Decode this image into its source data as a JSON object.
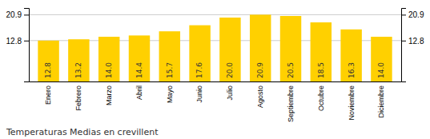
{
  "chart_data": {
    "type": "bar",
    "title": "Temperaturas Medias en crevillent",
    "categories": [
      "Enero",
      "Febrero",
      "Marzo",
      "Abril",
      "Mayo",
      "Junio",
      "Julio",
      "Agosto",
      "Septiembre",
      "Octubre",
      "Noviembre",
      "Diciembre"
    ],
    "values": [
      12.8,
      13.2,
      14.0,
      14.4,
      15.7,
      17.6,
      20.0,
      20.9,
      20.5,
      18.5,
      16.3,
      14.0
    ],
    "value_labels": [
      "12.8",
      "13.2",
      "14.0",
      "14.4",
      "15.7",
      "17.6",
      "20.0",
      "20.9",
      "20.5",
      "18.5",
      "16.3",
      "14.0"
    ],
    "color": "#FFD000",
    "ylim": [
      0,
      23.0
    ],
    "yticks": [
      12.8,
      20.9
    ],
    "grid": true,
    "data_labels": true
  }
}
